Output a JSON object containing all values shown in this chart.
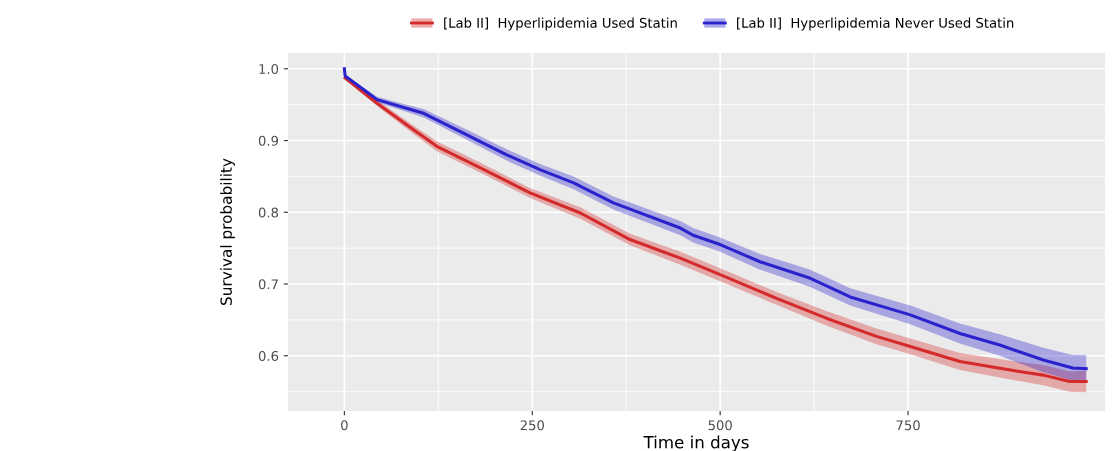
{
  "chart_data": {
    "type": "line",
    "xlabel": "Time in days",
    "ylabel": "Survival probability",
    "xlim": [
      -75,
      1012
    ],
    "ylim": [
      0.523,
      1.022
    ],
    "xticks": [
      0,
      250,
      500,
      750
    ],
    "yticks": [
      {
        "value": 0.6,
        "label": "0.6"
      },
      {
        "value": 0.7,
        "label": "0.7"
      },
      {
        "value": 0.8,
        "label": "0.8"
      },
      {
        "value": 0.9,
        "label": "0.9"
      },
      {
        "value": 1.0,
        "label": "1.0"
      }
    ],
    "grid": true,
    "legend": "top",
    "line_style": "solid",
    "marker": "none",
    "series": [
      {
        "name": "[Lab II]  Hyperlipidemia Used Statin",
        "color": "#d42a2a",
        "x": [
          0,
          1,
          43.5,
          92,
          123,
          181,
          247,
          314,
          380,
          447,
          500,
          575,
          642,
          708,
          753,
          819,
          886,
          930,
          965,
          987
        ],
        "values": [
          null,
          0.987,
          0.952,
          0.915,
          0.892,
          0.862,
          0.827,
          0.799,
          0.762,
          0.736,
          0.713,
          0.68,
          0.652,
          0.627,
          0.613,
          0.592,
          0.58,
          0.573,
          0.564,
          0.564
        ],
        "lower": [
          1.0,
          0.985,
          0.948,
          0.909,
          0.885,
          0.855,
          0.82,
          0.791,
          0.754,
          0.727,
          0.704,
          0.671,
          0.642,
          0.616,
          0.602,
          0.58,
          0.567,
          0.559,
          0.55,
          0.549
        ],
        "upper": [
          1.0,
          0.989,
          0.956,
          0.921,
          0.899,
          0.869,
          0.834,
          0.807,
          0.77,
          0.745,
          0.722,
          0.689,
          0.662,
          0.638,
          0.624,
          0.604,
          0.593,
          0.587,
          0.578,
          0.579
        ]
      },
      {
        "name": "[Lab II]  Hyperlipidemia Never Used Statin",
        "color": "#2a22cc",
        "x": [
          0,
          1,
          43.5,
          79,
          105.5,
          159,
          216,
          261,
          305,
          358,
          447,
          464,
          500,
          553,
          620,
          673,
          753,
          819,
          872,
          930,
          969,
          987
        ],
        "values": [
          1.0,
          0.99,
          0.957,
          0.946,
          0.938,
          0.91,
          0.88,
          0.859,
          0.841,
          0.813,
          0.778,
          0.768,
          0.755,
          0.731,
          0.708,
          0.682,
          0.657,
          0.631,
          0.615,
          0.594,
          0.583,
          0.582
        ],
        "lower": [
          1.0,
          0.988,
          0.953,
          0.941,
          0.932,
          0.903,
          0.872,
          0.851,
          0.832,
          0.804,
          0.768,
          0.758,
          0.745,
          0.72,
          0.696,
          0.67,
          0.644,
          0.617,
          0.6,
          0.577,
          0.565,
          0.562
        ],
        "upper": [
          1.0,
          0.992,
          0.961,
          0.951,
          0.944,
          0.917,
          0.888,
          0.867,
          0.85,
          0.822,
          0.788,
          0.778,
          0.765,
          0.742,
          0.72,
          0.694,
          0.67,
          0.645,
          0.63,
          0.611,
          0.601,
          0.601
        ]
      }
    ]
  }
}
